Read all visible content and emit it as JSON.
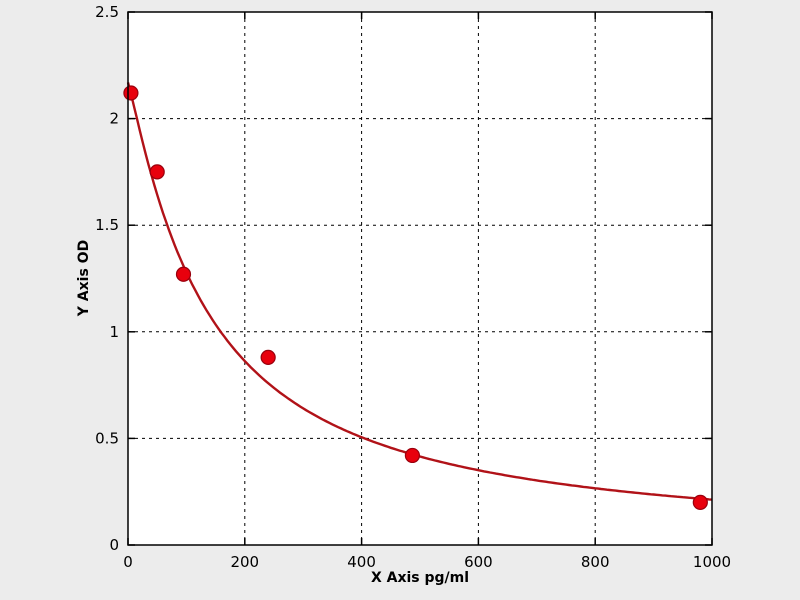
{
  "figure": {
    "background": "#ececec",
    "plot_background": "#ffffff",
    "axis_color": "#000000",
    "grid_color": "#000000",
    "curve_color": "#b11218",
    "point_color": "#e8000d",
    "point_edge_color": "#99000d"
  },
  "chart_data": {
    "type": "scatter",
    "title": "",
    "xlabel": "X Axis pg/ml",
    "ylabel": "Y Axis OD",
    "xlim": [
      0,
      1000
    ],
    "ylim": [
      0,
      2.5
    ],
    "x_ticks": [
      "0",
      "200",
      "400",
      "600",
      "800",
      "1000"
    ],
    "y_ticks": [
      "0",
      "0.5",
      "1",
      "1.5",
      "2",
      "2.5"
    ],
    "grid": true,
    "legend": "none",
    "points": [
      {
        "x": 5,
        "y": 2.12
      },
      {
        "x": 50,
        "y": 1.75
      },
      {
        "x": 95,
        "y": 1.27
      },
      {
        "x": 240,
        "y": 0.88
      },
      {
        "x": 487,
        "y": 0.42
      },
      {
        "x": 980,
        "y": 0.2
      }
    ],
    "fit_curve": {
      "model": "4PL",
      "a": 2.17,
      "b": 1.12,
      "c": 138,
      "d": 0.0
    }
  }
}
